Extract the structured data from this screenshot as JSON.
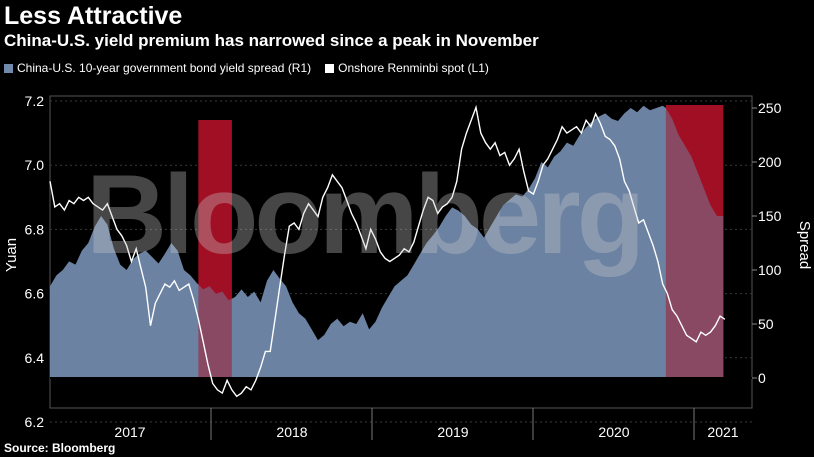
{
  "title": "Less Attractive",
  "subtitle": "China-U.S. yield premium has narrowed since a peak in November",
  "source": "Source: Bloomberg",
  "watermark": "Bloomberg",
  "colors": {
    "spread": "#7189ab",
    "spot": "#ffffff",
    "shade": "#a00f24",
    "grid": "#3a3a3a",
    "bg": "#000000"
  },
  "chart_data": {
    "type": "area",
    "title": "Less Attractive",
    "subtitle": "China-U.S. yield premium has narrowed since a peak in November",
    "ylabel_left": "Yuan",
    "ylabel_right": "Spread",
    "ylim_left": [
      6.2,
      7.2
    ],
    "ylim_right": [
      0,
      250
    ],
    "yticks_left": [
      "7.2",
      "7.0",
      "6.8",
      "6.6",
      "6.4",
      "6.2"
    ],
    "yticks_right": [
      "250",
      "200",
      "150",
      "100",
      "50",
      "0"
    ],
    "xticks": [
      "2017",
      "2018",
      "2019",
      "2020",
      "2021"
    ],
    "x_domain": [
      2017.0,
      2021.4
    ],
    "grid": true,
    "legend_position": "top-left",
    "shaded_periods": [
      [
        2017.93,
        2018.14
      ],
      [
        2020.86,
        2021.4
      ]
    ],
    "series": [
      {
        "name": "China-U.S. 10-year government bond yield spread  (R1)",
        "axis": "right",
        "style": "area",
        "x": [
          2017.0,
          2017.04,
          2017.08,
          2017.12,
          2017.16,
          2017.2,
          2017.24,
          2017.28,
          2017.32,
          2017.36,
          2017.4,
          2017.44,
          2017.48,
          2017.52,
          2017.56,
          2017.6,
          2017.64,
          2017.68,
          2017.72,
          2017.76,
          2017.8,
          2017.84,
          2017.88,
          2017.92,
          2017.96,
          2018.0,
          2018.04,
          2018.08,
          2018.12,
          2018.16,
          2018.2,
          2018.24,
          2018.28,
          2018.32,
          2018.36,
          2018.4,
          2018.44,
          2018.48,
          2018.52,
          2018.56,
          2018.6,
          2018.64,
          2018.68,
          2018.72,
          2018.76,
          2018.8,
          2018.84,
          2018.88,
          2018.92,
          2018.96,
          2019.0,
          2019.04,
          2019.08,
          2019.12,
          2019.16,
          2019.2,
          2019.24,
          2019.28,
          2019.32,
          2019.36,
          2019.4,
          2019.44,
          2019.48,
          2019.52,
          2019.56,
          2019.6,
          2019.64,
          2019.68,
          2019.72,
          2019.76,
          2019.8,
          2019.84,
          2019.88,
          2019.92,
          2019.96,
          2020.0,
          2020.04,
          2020.08,
          2020.12,
          2020.16,
          2020.2,
          2020.24,
          2020.28,
          2020.32,
          2020.36,
          2020.4,
          2020.44,
          2020.48,
          2020.52,
          2020.56,
          2020.6,
          2020.64,
          2020.68,
          2020.72,
          2020.76,
          2020.8,
          2020.84,
          2020.86,
          2020.9,
          2020.94,
          2020.98,
          2021.02,
          2021.06,
          2021.1,
          2021.14,
          2021.18,
          2021.22
        ],
        "values": [
          85,
          95,
          100,
          108,
          105,
          118,
          125,
          140,
          150,
          142,
          120,
          105,
          100,
          110,
          115,
          118,
          112,
          106,
          115,
          125,
          118,
          100,
          95,
          88,
          82,
          85,
          78,
          80,
          72,
          75,
          82,
          75,
          80,
          70,
          90,
          100,
          92,
          85,
          70,
          60,
          55,
          45,
          35,
          40,
          50,
          55,
          48,
          52,
          50,
          60,
          45,
          52,
          65,
          75,
          85,
          90,
          95,
          105,
          115,
          125,
          132,
          140,
          150,
          158,
          155,
          150,
          142,
          138,
          130,
          140,
          150,
          160,
          165,
          170,
          168,
          175,
          185,
          200,
          195,
          205,
          210,
          218,
          215,
          225,
          232,
          238,
          242,
          245,
          240,
          238,
          245,
          250,
          246,
          252,
          248,
          250,
          252,
          250,
          240,
          225,
          215,
          205,
          190,
          175,
          160,
          150,
          150
        ]
      },
      {
        "name": "Onshore Renminbi spot (L1)",
        "axis": "left",
        "style": "line",
        "x": [
          2017.0,
          2017.03,
          2017.06,
          2017.09,
          2017.12,
          2017.15,
          2017.18,
          2017.21,
          2017.24,
          2017.27,
          2017.3,
          2017.33,
          2017.36,
          2017.39,
          2017.42,
          2017.45,
          2017.48,
          2017.51,
          2017.54,
          2017.57,
          2017.6,
          2017.63,
          2017.66,
          2017.69,
          2017.72,
          2017.75,
          2017.78,
          2017.81,
          2017.84,
          2017.87,
          2017.9,
          2017.93,
          2017.96,
          2017.99,
          2018.02,
          2018.05,
          2018.08,
          2018.11,
          2018.14,
          2018.17,
          2018.2,
          2018.23,
          2018.26,
          2018.29,
          2018.32,
          2018.35,
          2018.38,
          2018.41,
          2018.44,
          2018.47,
          2018.5,
          2018.53,
          2018.56,
          2018.59,
          2018.62,
          2018.65,
          2018.68,
          2018.71,
          2018.74,
          2018.77,
          2018.8,
          2018.83,
          2018.86,
          2018.89,
          2018.92,
          2018.95,
          2018.98,
          2019.01,
          2019.04,
          2019.07,
          2019.1,
          2019.13,
          2019.16,
          2019.19,
          2019.22,
          2019.25,
          2019.28,
          2019.31,
          2019.34,
          2019.37,
          2019.4,
          2019.43,
          2019.46,
          2019.49,
          2019.52,
          2019.55,
          2019.58,
          2019.61,
          2019.64,
          2019.67,
          2019.7,
          2019.73,
          2019.76,
          2019.79,
          2019.82,
          2019.85,
          2019.88,
          2019.91,
          2019.94,
          2019.97,
          2020.0,
          2020.03,
          2020.06,
          2020.09,
          2020.12,
          2020.15,
          2020.18,
          2020.21,
          2020.24,
          2020.27,
          2020.3,
          2020.33,
          2020.36,
          2020.39,
          2020.42,
          2020.45,
          2020.48,
          2020.51,
          2020.54,
          2020.57,
          2020.6,
          2020.63,
          2020.66,
          2020.69,
          2020.72,
          2020.75,
          2020.78,
          2020.81,
          2020.84,
          2020.87,
          2020.9,
          2020.93,
          2020.96,
          2020.99,
          2021.02,
          2021.05,
          2021.08,
          2021.11,
          2021.14,
          2021.17,
          2021.2,
          2021.23
        ],
        "values": [
          6.95,
          6.87,
          6.88,
          6.86,
          6.89,
          6.88,
          6.9,
          6.89,
          6.9,
          6.88,
          6.87,
          6.86,
          6.88,
          6.84,
          6.8,
          6.78,
          6.75,
          6.7,
          6.74,
          6.68,
          6.62,
          6.5,
          6.57,
          6.6,
          6.63,
          6.62,
          6.64,
          6.61,
          6.62,
          6.63,
          6.58,
          6.52,
          6.45,
          6.38,
          6.32,
          6.3,
          6.29,
          6.33,
          6.3,
          6.28,
          6.29,
          6.31,
          6.3,
          6.33,
          6.37,
          6.42,
          6.42,
          6.52,
          6.62,
          6.72,
          6.81,
          6.82,
          6.8,
          6.85,
          6.88,
          6.86,
          6.84,
          6.9,
          6.93,
          6.97,
          6.95,
          6.93,
          6.89,
          6.85,
          6.82,
          6.78,
          6.74,
          6.8,
          6.77,
          6.73,
          6.71,
          6.7,
          6.71,
          6.72,
          6.74,
          6.73,
          6.76,
          6.81,
          6.86,
          6.9,
          6.89,
          6.85,
          6.87,
          6.88,
          6.9,
          6.95,
          7.05,
          7.1,
          7.14,
          7.18,
          7.1,
          7.07,
          7.05,
          7.07,
          7.03,
          7.04,
          7.0,
          7.02,
          7.05,
          6.98,
          6.92,
          6.91,
          6.95,
          7.0,
          7.02,
          7.05,
          7.08,
          7.12,
          7.1,
          7.11,
          7.12,
          7.1,
          7.14,
          7.12,
          7.16,
          7.13,
          7.09,
          7.08,
          7.06,
          7.02,
          6.95,
          6.92,
          6.87,
          6.82,
          6.83,
          6.79,
          6.75,
          6.7,
          6.63,
          6.6,
          6.55,
          6.53,
          6.5,
          6.47,
          6.46,
          6.45,
          6.48,
          6.47,
          6.48,
          6.5,
          6.53,
          6.52
        ]
      }
    ]
  }
}
